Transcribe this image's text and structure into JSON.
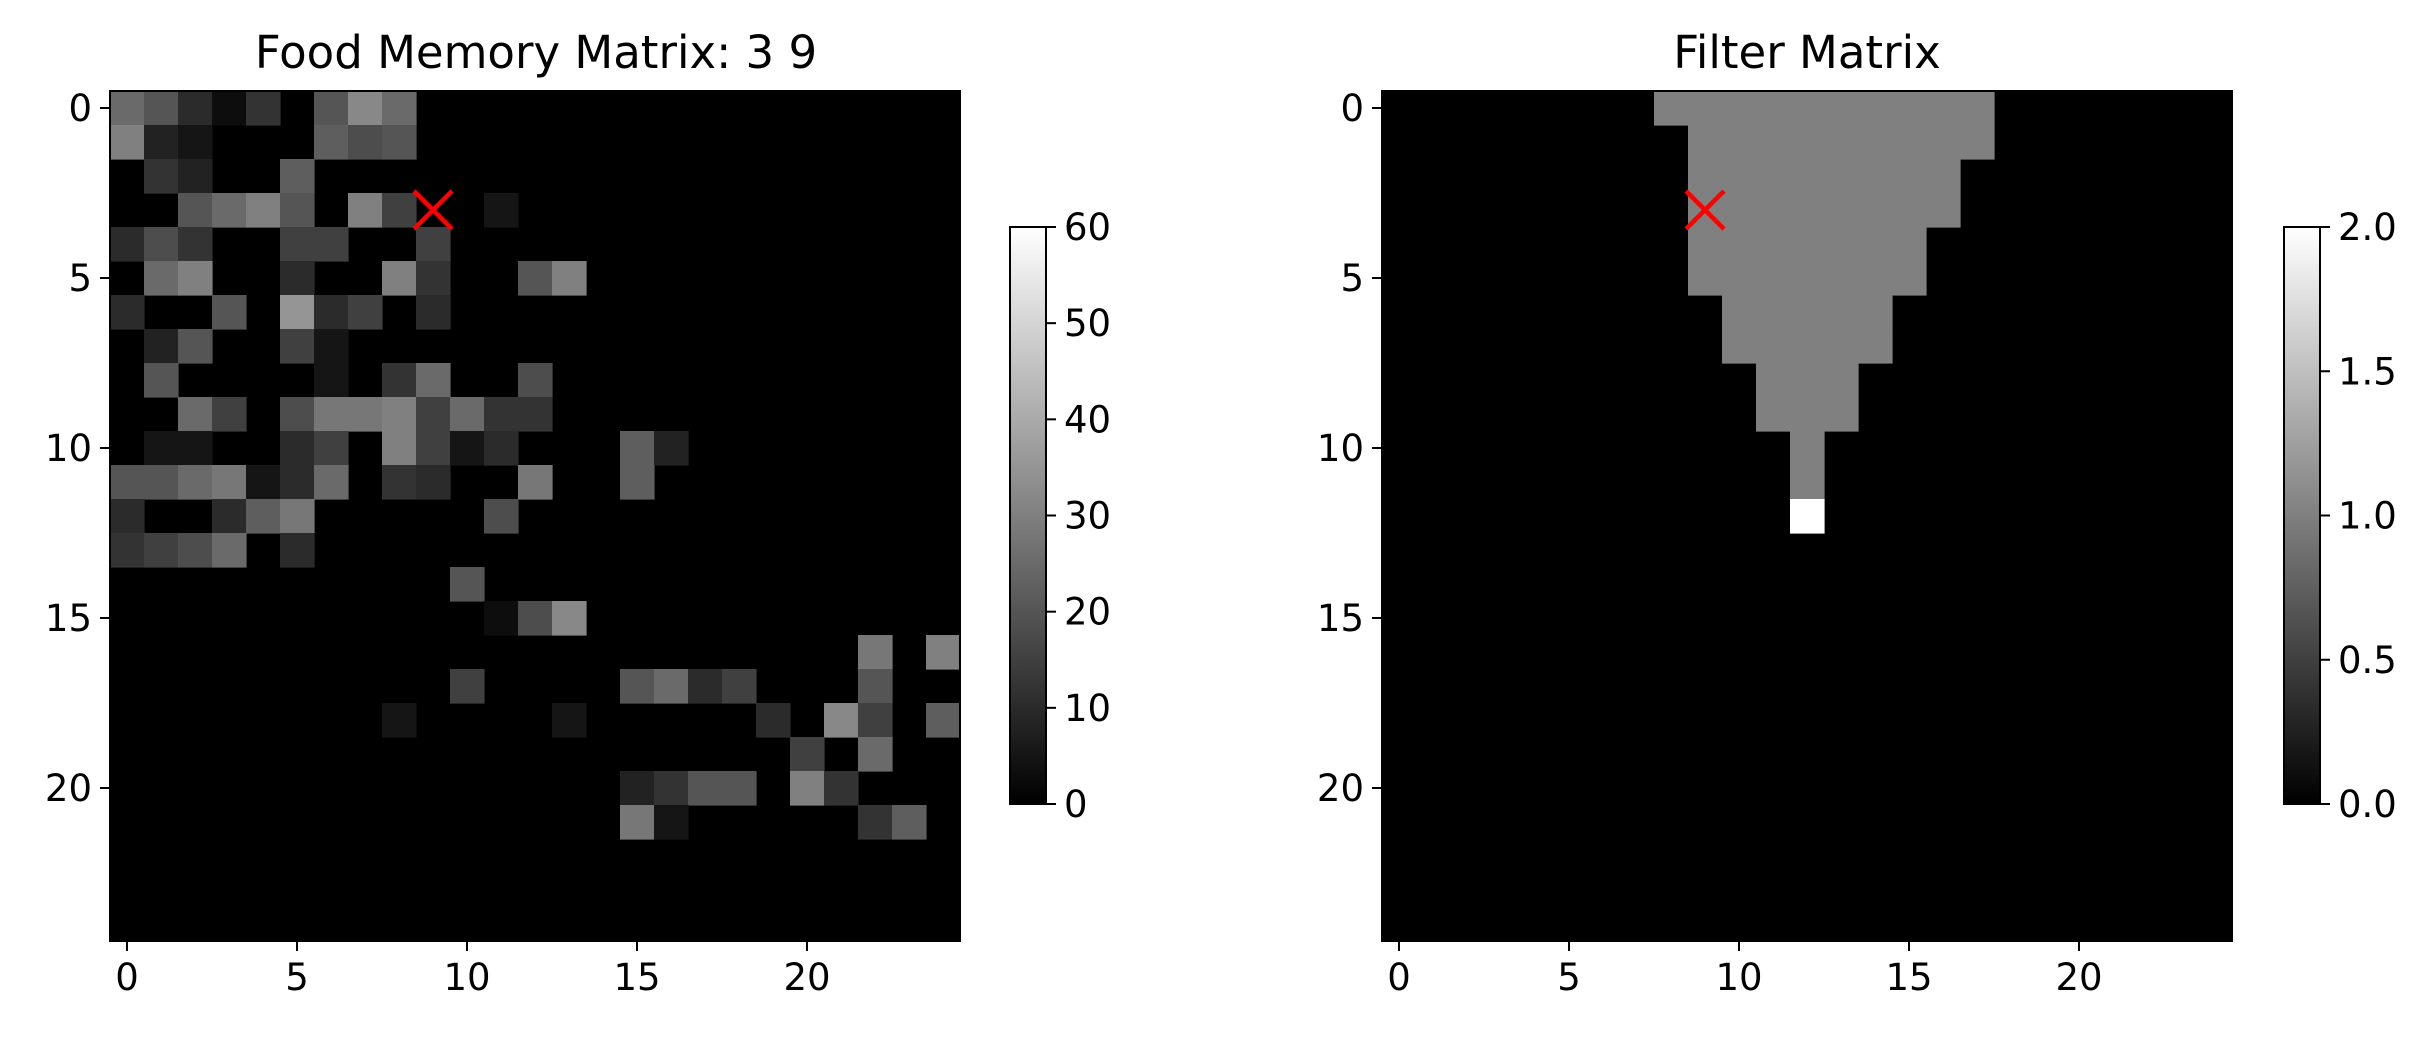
{
  "chart_data": [
    {
      "type": "heatmap",
      "title": "Food Memory Matrix: 3 9",
      "colormap": "gray",
      "rows": 25,
      "cols": 25,
      "x_ticks": [
        0,
        5,
        10,
        15,
        20
      ],
      "y_ticks": [
        0,
        5,
        10,
        15,
        20
      ],
      "xlim": [
        -0.5,
        24.5
      ],
      "ylim": [
        24.5,
        -0.5
      ],
      "vmin": 0,
      "vmax": 60,
      "colorbar_ticks": [
        "0",
        "10",
        "20",
        "30",
        "40",
        "50",
        "60"
      ],
      "colorbar_tick_values": [
        0,
        10,
        20,
        30,
        40,
        50,
        60
      ],
      "marker": {
        "row": 3,
        "col": 9,
        "symbol": "x",
        "color": "#ff0000"
      },
      "values": [
        [
          25,
          20,
          10,
          3,
          12,
          0,
          20,
          32,
          25,
          0,
          0,
          0,
          0,
          0,
          0,
          0,
          0,
          0,
          0,
          0,
          0,
          0,
          0,
          0,
          0
        ],
        [
          30,
          8,
          5,
          0,
          0,
          0,
          22,
          18,
          20,
          0,
          0,
          0,
          0,
          0,
          0,
          0,
          0,
          0,
          0,
          0,
          0,
          0,
          0,
          0,
          0
        ],
        [
          0,
          12,
          8,
          0,
          0,
          22,
          0,
          0,
          0,
          0,
          0,
          0,
          0,
          0,
          0,
          0,
          0,
          0,
          0,
          0,
          0,
          0,
          0,
          0,
          0
        ],
        [
          0,
          0,
          20,
          25,
          30,
          20,
          0,
          30,
          15,
          0,
          0,
          5,
          0,
          0,
          0,
          0,
          0,
          0,
          0,
          0,
          0,
          0,
          0,
          0,
          0
        ],
        [
          10,
          18,
          12,
          0,
          0,
          15,
          15,
          0,
          0,
          15,
          0,
          0,
          0,
          0,
          0,
          0,
          0,
          0,
          0,
          0,
          0,
          0,
          0,
          0,
          0
        ],
        [
          0,
          25,
          30,
          0,
          0,
          10,
          0,
          0,
          30,
          12,
          0,
          0,
          20,
          30,
          0,
          0,
          0,
          0,
          0,
          0,
          0,
          0,
          0,
          0,
          0
        ],
        [
          10,
          0,
          0,
          20,
          0,
          35,
          10,
          15,
          0,
          10,
          0,
          0,
          0,
          0,
          0,
          0,
          0,
          0,
          0,
          0,
          0,
          0,
          0,
          0,
          0
        ],
        [
          0,
          8,
          20,
          0,
          0,
          15,
          5,
          0,
          0,
          0,
          0,
          0,
          0,
          0,
          0,
          0,
          0,
          0,
          0,
          0,
          0,
          0,
          0,
          0,
          0
        ],
        [
          0,
          20,
          0,
          0,
          0,
          0,
          5,
          0,
          12,
          25,
          0,
          0,
          18,
          0,
          0,
          0,
          0,
          0,
          0,
          0,
          0,
          0,
          0,
          0,
          0
        ],
        [
          0,
          0,
          25,
          15,
          0,
          18,
          28,
          28,
          30,
          15,
          25,
          12,
          12,
          0,
          0,
          0,
          0,
          0,
          0,
          0,
          0,
          0,
          0,
          0,
          0
        ],
        [
          0,
          5,
          5,
          0,
          0,
          10,
          15,
          0,
          30,
          15,
          5,
          10,
          0,
          0,
          0,
          22,
          8,
          0,
          0,
          0,
          0,
          0,
          0,
          0,
          0
        ],
        [
          20,
          20,
          25,
          28,
          5,
          10,
          25,
          0,
          12,
          10,
          0,
          0,
          28,
          0,
          0,
          22,
          0,
          0,
          0,
          0,
          0,
          0,
          0,
          0,
          0
        ],
        [
          10,
          0,
          0,
          10,
          22,
          28,
          0,
          0,
          0,
          0,
          0,
          18,
          0,
          0,
          0,
          0,
          0,
          0,
          0,
          0,
          0,
          0,
          0,
          0,
          0
        ],
        [
          12,
          15,
          18,
          25,
          0,
          10,
          0,
          0,
          0,
          0,
          0,
          0,
          0,
          0,
          0,
          0,
          0,
          0,
          0,
          0,
          0,
          0,
          0,
          0,
          0
        ],
        [
          0,
          0,
          0,
          0,
          0,
          0,
          0,
          0,
          0,
          0,
          20,
          0,
          0,
          0,
          0,
          0,
          0,
          0,
          0,
          0,
          0,
          0,
          0,
          0,
          0
        ],
        [
          0,
          0,
          0,
          0,
          0,
          0,
          0,
          0,
          0,
          0,
          0,
          3,
          18,
          32,
          0,
          0,
          0,
          0,
          0,
          0,
          0,
          0,
          0,
          0,
          0
        ],
        [
          0,
          0,
          0,
          0,
          0,
          0,
          0,
          0,
          0,
          0,
          0,
          0,
          0,
          0,
          0,
          0,
          0,
          0,
          0,
          0,
          0,
          0,
          28,
          0,
          30
        ],
        [
          0,
          0,
          0,
          0,
          0,
          0,
          0,
          0,
          0,
          0,
          15,
          0,
          0,
          0,
          0,
          20,
          25,
          10,
          15,
          0,
          0,
          0,
          20,
          0,
          0
        ],
        [
          0,
          0,
          0,
          0,
          0,
          0,
          0,
          0,
          5,
          0,
          0,
          0,
          0,
          5,
          0,
          0,
          0,
          0,
          0,
          10,
          0,
          32,
          15,
          0,
          22
        ],
        [
          0,
          0,
          0,
          0,
          0,
          0,
          0,
          0,
          0,
          0,
          0,
          0,
          0,
          0,
          0,
          0,
          0,
          0,
          0,
          0,
          15,
          0,
          25,
          0,
          0
        ],
        [
          0,
          0,
          0,
          0,
          0,
          0,
          0,
          0,
          0,
          0,
          0,
          0,
          0,
          0,
          0,
          8,
          12,
          20,
          20,
          0,
          30,
          12,
          0,
          0,
          0
        ],
        [
          0,
          0,
          0,
          0,
          0,
          0,
          0,
          0,
          0,
          0,
          0,
          0,
          0,
          0,
          0,
          28,
          5,
          0,
          0,
          0,
          0,
          0,
          12,
          22,
          0
        ],
        [
          0,
          0,
          0,
          0,
          0,
          0,
          0,
          0,
          0,
          0,
          0,
          0,
          0,
          0,
          0,
          0,
          0,
          0,
          0,
          0,
          0,
          0,
          0,
          0,
          0
        ],
        [
          0,
          0,
          0,
          0,
          0,
          0,
          0,
          0,
          0,
          0,
          0,
          0,
          0,
          0,
          0,
          0,
          0,
          0,
          0,
          0,
          0,
          0,
          0,
          0,
          0
        ],
        [
          0,
          0,
          0,
          0,
          0,
          0,
          0,
          0,
          0,
          0,
          0,
          0,
          0,
          0,
          0,
          0,
          0,
          0,
          0,
          0,
          0,
          0,
          0,
          0,
          0
        ]
      ]
    },
    {
      "type": "heatmap",
      "title": "Filter Matrix",
      "colormap": "gray",
      "rows": 25,
      "cols": 25,
      "x_ticks": [
        0,
        5,
        10,
        15,
        20
      ],
      "y_ticks": [
        0,
        5,
        10,
        15,
        20
      ],
      "xlim": [
        -0.5,
        24.5
      ],
      "ylim": [
        24.5,
        -0.5
      ],
      "vmin": 0,
      "vmax": 2,
      "colorbar_ticks": [
        "0.0",
        "0.5",
        "1.0",
        "1.5",
        "2.0"
      ],
      "colorbar_tick_values": [
        0,
        0.5,
        1,
        1.5,
        2
      ],
      "marker": {
        "row": 3,
        "col": 9,
        "symbol": "x",
        "color": "#ff0000"
      },
      "filled_row_ranges": [
        {
          "row": 0,
          "from": 8,
          "to": 17,
          "value": 1
        },
        {
          "row": 1,
          "from": 9,
          "to": 17,
          "value": 1
        },
        {
          "row": 2,
          "from": 9,
          "to": 16,
          "value": 1
        },
        {
          "row": 3,
          "from": 9,
          "to": 16,
          "value": 1
        },
        {
          "row": 4,
          "from": 9,
          "to": 15,
          "value": 1
        },
        {
          "row": 5,
          "from": 9,
          "to": 15,
          "value": 1
        },
        {
          "row": 6,
          "from": 10,
          "to": 14,
          "value": 1
        },
        {
          "row": 7,
          "from": 10,
          "to": 14,
          "value": 1
        },
        {
          "row": 8,
          "from": 11,
          "to": 13,
          "value": 1
        },
        {
          "row": 9,
          "from": 11,
          "to": 13,
          "value": 1
        },
        {
          "row": 10,
          "from": 12,
          "to": 12,
          "value": 1
        },
        {
          "row": 11,
          "from": 12,
          "to": 12,
          "value": 1
        },
        {
          "row": 12,
          "from": 12,
          "to": 12,
          "value": 2
        }
      ]
    }
  ]
}
